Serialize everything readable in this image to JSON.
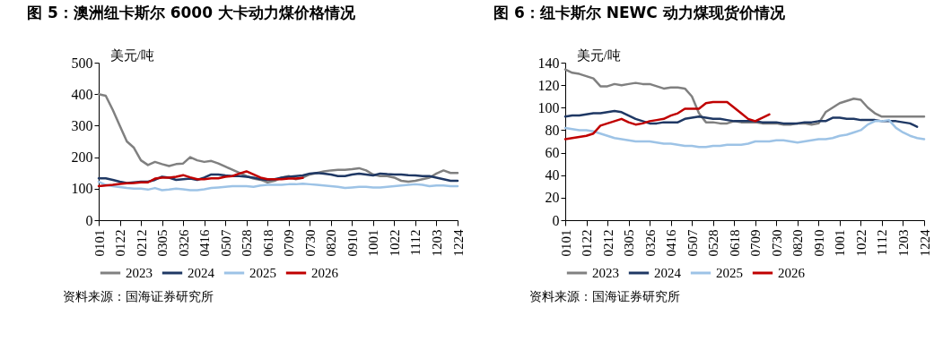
{
  "chart_data": [
    {
      "type": "line",
      "title": "图 5：澳洲纽卡斯尔 6000 大卡动力煤价格情况",
      "ylabel": "美元/吨",
      "legend": "bottom",
      "annotations": [
        "资料来源：国海证券研究所"
      ],
      "categories": [
        "0101",
        null,
        null,
        "0122",
        null,
        null,
        "0212",
        null,
        null,
        "0305",
        null,
        null,
        "0326",
        null,
        null,
        "0416",
        null,
        null,
        "0507",
        null,
        null,
        "0528",
        null,
        null,
        "0618",
        null,
        null,
        "0709",
        null,
        null,
        "0730",
        null,
        null,
        "0820",
        null,
        null,
        "0910",
        null,
        null,
        "1001",
        null,
        null,
        "1022",
        null,
        null,
        "1112",
        null,
        null,
        "1203",
        null,
        null,
        "1224"
      ],
      "ylim": [
        0,
        500
      ],
      "yticks": [
        0,
        100,
        200,
        300,
        400,
        500
      ],
      "series": [
        {
          "name": "2023",
          "color": "#808080",
          "values": [
            400,
            395,
            350,
            300,
            250,
            230,
            190,
            175,
            185,
            178,
            172,
            178,
            180,
            200,
            190,
            185,
            188,
            180,
            170,
            160,
            150,
            140,
            132,
            128,
            120,
            125,
            135,
            140,
            130,
            135,
            145,
            150,
            155,
            158,
            160,
            160,
            162,
            165,
            158,
            145,
            140,
            140,
            135,
            125,
            122,
            125,
            130,
            135,
            148,
            158,
            150,
            150
          ]
        },
        {
          "name": "2024",
          "color": "#1f3864",
          "values": [
            133,
            133,
            128,
            122,
            118,
            120,
            122,
            122,
            128,
            138,
            135,
            128,
            130,
            132,
            128,
            135,
            145,
            145,
            142,
            140,
            140,
            138,
            135,
            130,
            128,
            130,
            135,
            138,
            140,
            142,
            148,
            150,
            148,
            145,
            140,
            140,
            145,
            148,
            145,
            142,
            148,
            146,
            145,
            145,
            143,
            142,
            140,
            140,
            135,
            130,
            125,
            125
          ]
        },
        {
          "name": "2025",
          "color": "#9dc3e6",
          "values": [
            122,
            112,
            108,
            105,
            102,
            100,
            100,
            97,
            102,
            95,
            97,
            100,
            98,
            95,
            95,
            98,
            102,
            104,
            106,
            108,
            108,
            108,
            106,
            110,
            112,
            112,
            112,
            114,
            114,
            116,
            114,
            112,
            110,
            108,
            106,
            102,
            104,
            106,
            106,
            104,
            104,
            106,
            108,
            110,
            112,
            114,
            112,
            108,
            110,
            110,
            108,
            108
          ]
        },
        {
          "name": "2026",
          "color": "#c00000",
          "values": [
            108,
            110,
            112,
            115,
            117,
            118,
            120,
            120,
            132,
            135,
            135,
            138,
            143,
            136,
            130,
            130,
            133,
            133,
            138,
            140,
            148,
            155,
            145,
            135,
            130,
            130,
            130,
            132,
            132,
            134,
            null,
            null,
            null,
            null,
            null,
            null,
            null,
            null,
            null,
            null,
            null,
            null,
            null,
            null,
            null,
            null,
            null,
            null,
            null,
            null,
            null,
            null
          ]
        }
      ]
    },
    {
      "type": "line",
      "title": "图 6：纽卡斯尔 NEWC 动力煤现货价情况",
      "ylabel": "美元/吨",
      "legend": "bottom",
      "annotations": [
        "资料来源：国海证券研究所"
      ],
      "categories": [
        "0101",
        null,
        null,
        "0122",
        null,
        null,
        "0212",
        null,
        null,
        "0305",
        null,
        null,
        "0326",
        null,
        null,
        "0416",
        null,
        null,
        "0507",
        null,
        null,
        "0528",
        null,
        null,
        "0618",
        null,
        null,
        "0709",
        null,
        null,
        "0730",
        null,
        null,
        "0820",
        null,
        null,
        "0910",
        null,
        null,
        "1001",
        null,
        null,
        "1022",
        null,
        null,
        "1112",
        null,
        null,
        "1203",
        null,
        null,
        "1224"
      ],
      "ylim": [
        0,
        140
      ],
      "yticks": [
        0,
        20,
        40,
        60,
        80,
        100,
        120,
        140
      ],
      "series": [
        {
          "name": "2023",
          "color": "#808080",
          "values": [
            134,
            131,
            130,
            128,
            126,
            119,
            119,
            121,
            120,
            121,
            122,
            121,
            121,
            119,
            117,
            118,
            118,
            117,
            110,
            95,
            87,
            87,
            86,
            86,
            88,
            87,
            87,
            87,
            86,
            86,
            86,
            85,
            85,
            86,
            86,
            85,
            86,
            96,
            100,
            104,
            106,
            108,
            107,
            100,
            95,
            92,
            92,
            92,
            92,
            92,
            92,
            92
          ]
        },
        {
          "name": "2024",
          "color": "#1f3864",
          "values": [
            92,
            93,
            93,
            94,
            95,
            95,
            96,
            97,
            96,
            93,
            90,
            88,
            86,
            86,
            87,
            87,
            87,
            90,
            91,
            92,
            91,
            90,
            90,
            89,
            88,
            88,
            88,
            88,
            87,
            87,
            87,
            86,
            86,
            86,
            87,
            87,
            88,
            88,
            91,
            91,
            90,
            90,
            89,
            89,
            89,
            88,
            88,
            88,
            87,
            86,
            83,
            null
          ]
        },
        {
          "name": "2025",
          "color": "#9dc3e6",
          "values": [
            82,
            81,
            80,
            80,
            79,
            77,
            75,
            73,
            72,
            71,
            70,
            70,
            70,
            69,
            68,
            68,
            67,
            66,
            66,
            65,
            65,
            66,
            66,
            67,
            67,
            67,
            68,
            70,
            70,
            70,
            71,
            71,
            70,
            69,
            70,
            71,
            72,
            72,
            73,
            75,
            76,
            78,
            80,
            85,
            88,
            88,
            89,
            82,
            78,
            75,
            73,
            72
          ]
        },
        {
          "name": "2026",
          "color": "#c00000",
          "values": [
            72,
            73,
            74,
            75,
            77,
            84,
            86,
            88,
            90,
            87,
            85,
            86,
            88,
            89,
            90,
            93,
            95,
            99,
            99,
            99,
            104,
            105,
            105,
            105,
            100,
            95,
            90,
            88,
            91,
            94,
            null,
            null,
            null,
            null,
            null,
            null,
            null,
            null,
            null,
            null,
            null,
            null,
            null,
            null,
            null,
            null,
            null,
            null,
            null,
            null,
            null,
            null
          ]
        }
      ]
    }
  ]
}
